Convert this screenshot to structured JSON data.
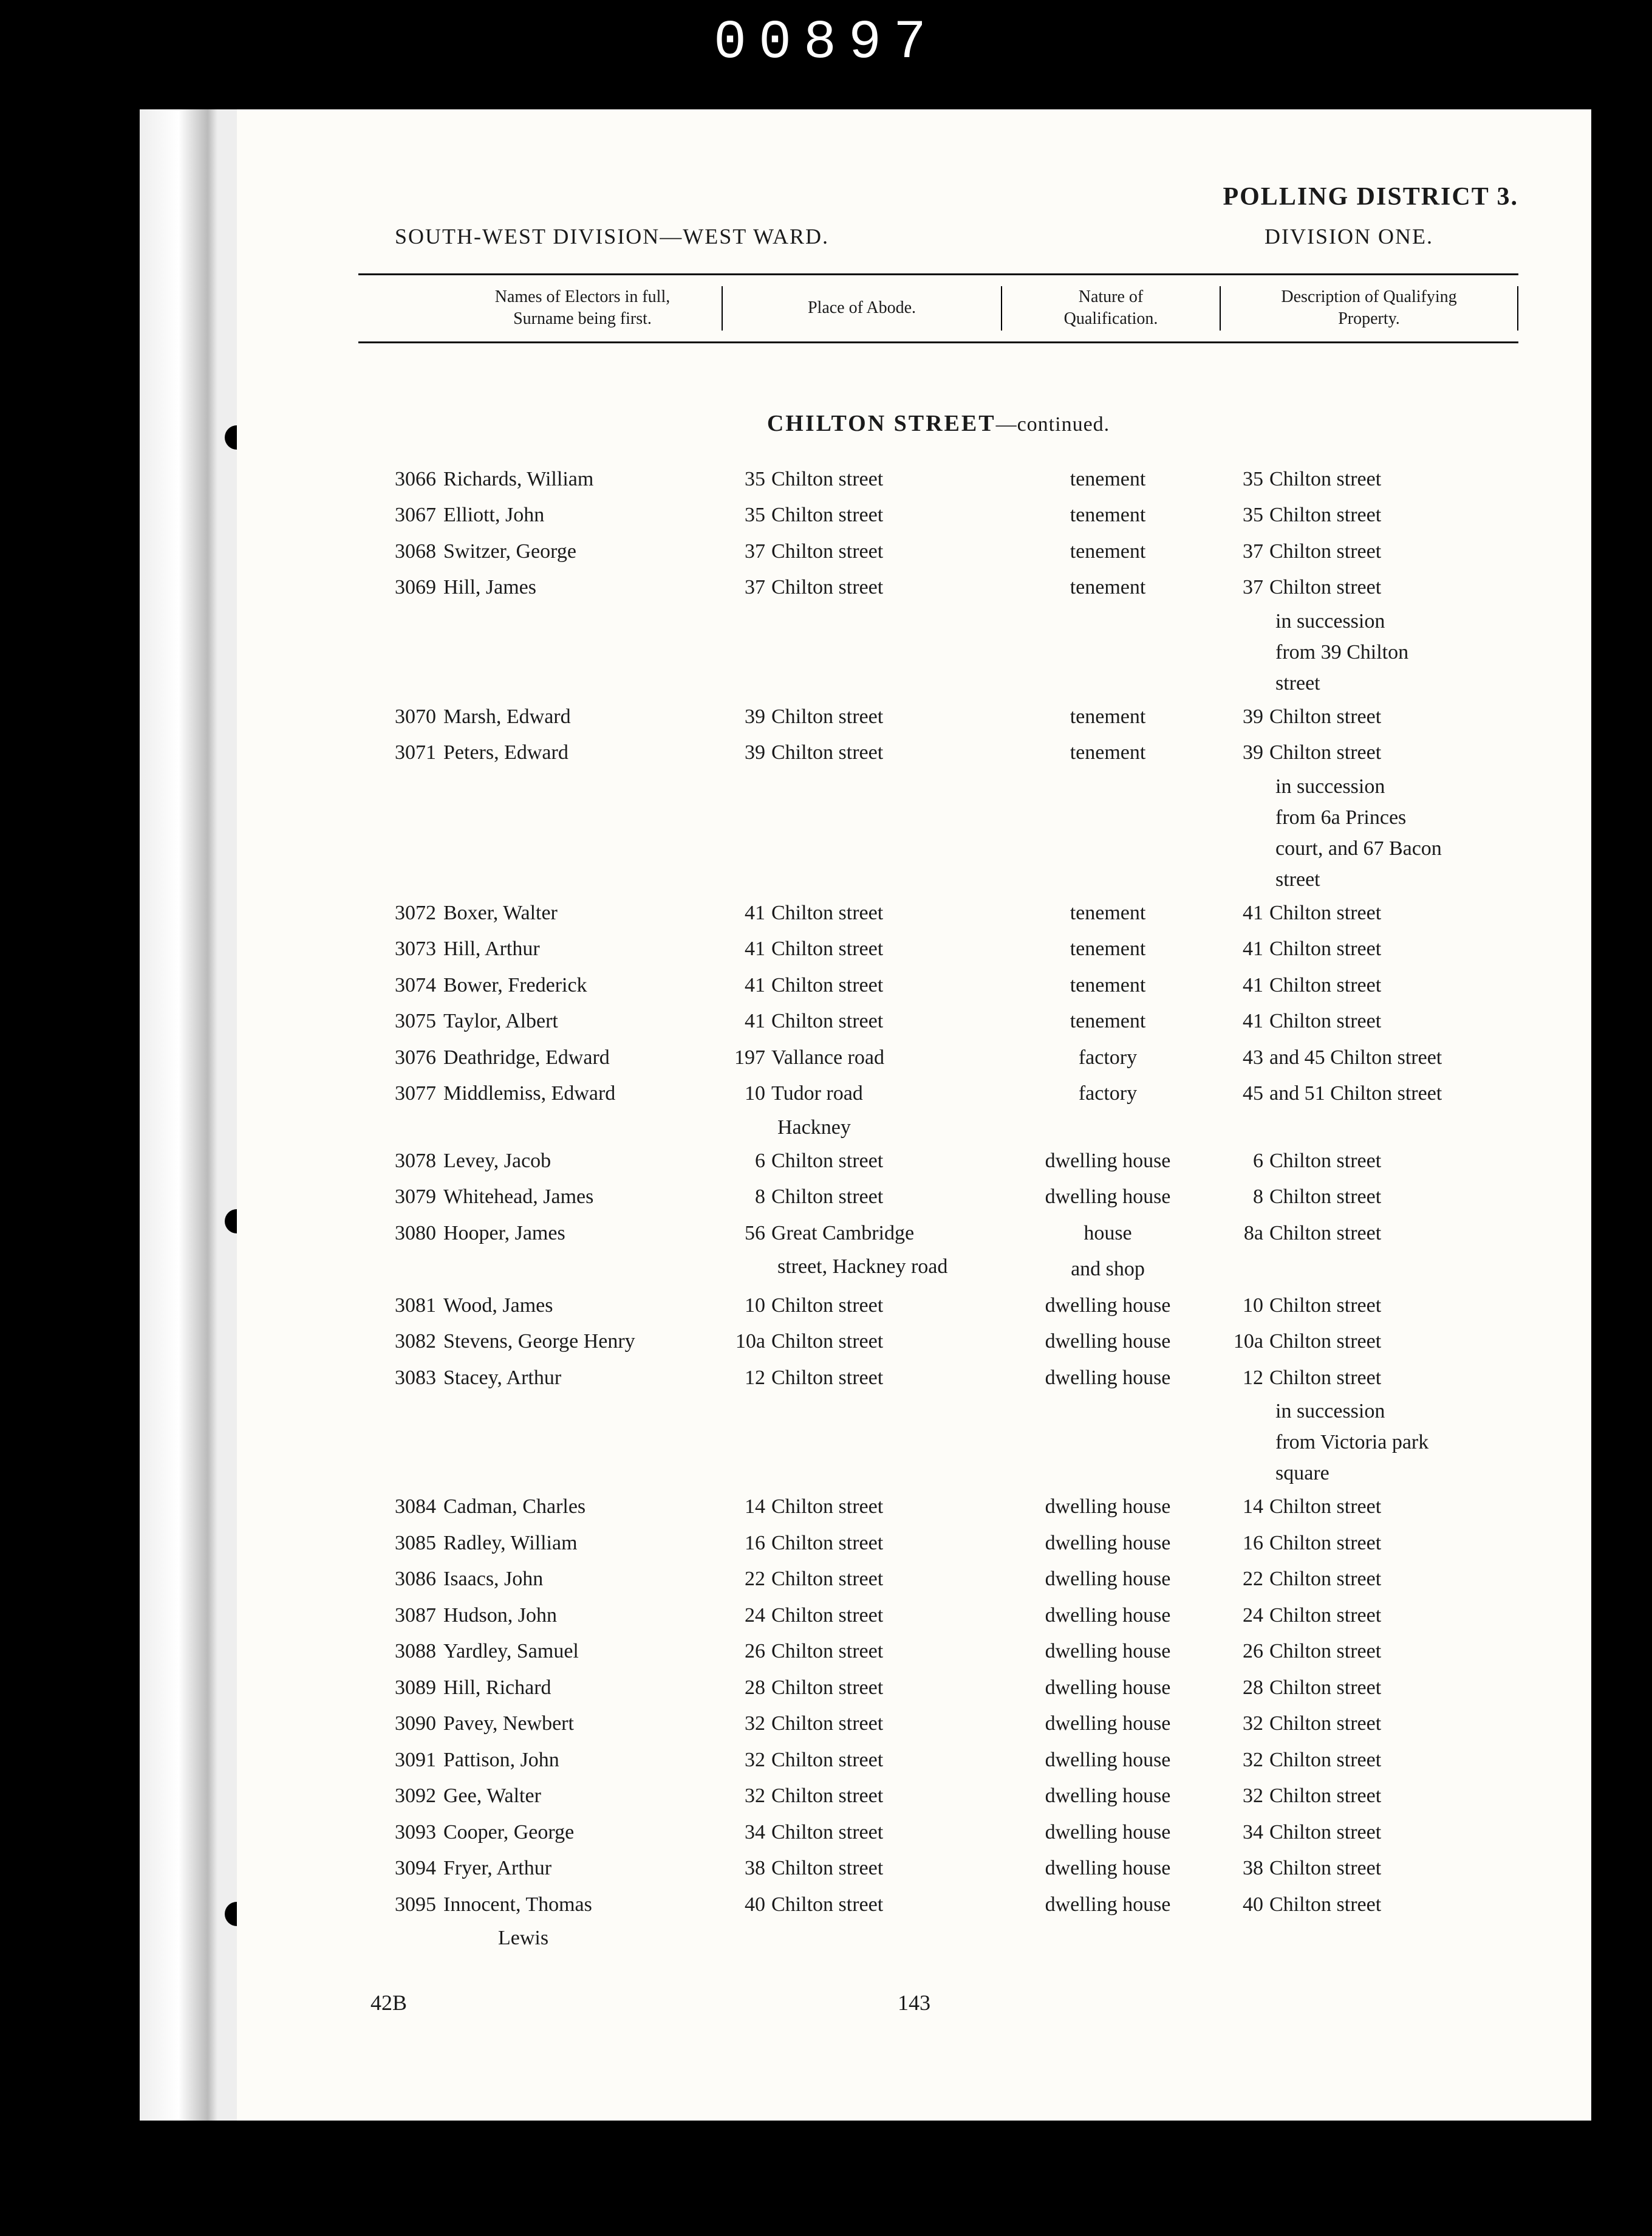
{
  "frame_number": "00897",
  "header": {
    "polling_district": "POLLING DISTRICT 3.",
    "division_ward": "SOUTH-WEST DIVISION—WEST WARD.",
    "division_num": "DIVISION ONE."
  },
  "columns": {
    "c1": "",
    "c2_l1": "Names of Electors in full,",
    "c2_l2": "Surname being first.",
    "c3": "Place of Abode.",
    "c4_l1": "Nature of",
    "c4_l2": "Qualification.",
    "c5_l1": "Description of Qualifying",
    "c5_l2": "Property."
  },
  "section": {
    "title": "CHILTON STREET",
    "cont": "—continued."
  },
  "rows": [
    {
      "n": "3066",
      "name": "Richards, William",
      "abode_n": "35",
      "abode": "Chilton street",
      "qual": "tenement",
      "prop_n": "35",
      "prop": "Chilton street"
    },
    {
      "n": "3067",
      "name": "Elliott, John",
      "abode_n": "35",
      "abode": "Chilton street",
      "qual": "tenement",
      "prop_n": "35",
      "prop": "Chilton street"
    },
    {
      "n": "3068",
      "name": "Switzer, George",
      "abode_n": "37",
      "abode": "Chilton street",
      "qual": "tenement",
      "prop_n": "37",
      "prop": "Chilton street"
    },
    {
      "n": "3069",
      "name": "Hill, James",
      "abode_n": "37",
      "abode": "Chilton street",
      "qual": "tenement",
      "prop_n": "37",
      "prop": "Chilton street",
      "prop_cont": [
        "in succession",
        "from 39 Chilton",
        "street"
      ]
    },
    {
      "n": "3070",
      "name": "Marsh, Edward",
      "abode_n": "39",
      "abode": "Chilton street",
      "qual": "tenement",
      "prop_n": "39",
      "prop": "Chilton street"
    },
    {
      "n": "3071",
      "name": "Peters, Edward",
      "abode_n": "39",
      "abode": "Chilton street",
      "qual": "tenement",
      "prop_n": "39",
      "prop": "Chilton street",
      "prop_cont": [
        "in succession",
        "from 6a Princes",
        "court, and 67 Bacon",
        "street"
      ]
    },
    {
      "n": "3072",
      "name": "Boxer, Walter",
      "abode_n": "41",
      "abode": "Chilton street",
      "qual": "tenement",
      "prop_n": "41",
      "prop": "Chilton street"
    },
    {
      "n": "3073",
      "name": "Hill, Arthur",
      "abode_n": "41",
      "abode": "Chilton street",
      "qual": "tenement",
      "prop_n": "41",
      "prop": "Chilton street"
    },
    {
      "n": "3074",
      "name": "Bower, Frederick",
      "abode_n": "41",
      "abode": "Chilton street",
      "qual": "tenement",
      "prop_n": "41",
      "prop": "Chilton street"
    },
    {
      "n": "3075",
      "name": "Taylor, Albert",
      "abode_n": "41",
      "abode": "Chilton street",
      "qual": "tenement",
      "prop_n": "41",
      "prop": "Chilton street"
    },
    {
      "n": "3076",
      "name": "Deathridge, Edward",
      "abode_n": "197",
      "abode": "Vallance road",
      "qual": "factory",
      "prop_n": "43",
      "prop": "and 45 Chilton street"
    },
    {
      "n": "3077",
      "name": "Middlemiss, Edward",
      "abode_n": "10",
      "abode": "Tudor road",
      "abode_cont": [
        "Hackney"
      ],
      "qual": "factory",
      "prop_n": "45",
      "prop": "and 51 Chilton street"
    },
    {
      "n": "3078",
      "name": "Levey, Jacob",
      "abode_n": "6",
      "abode": "Chilton street",
      "qual": "dwelling house",
      "prop_n": "6",
      "prop": "Chilton street"
    },
    {
      "n": "3079",
      "name": "Whitehead, James",
      "abode_n": "8",
      "abode": "Chilton street",
      "qual": "dwelling house",
      "prop_n": "8",
      "prop": "Chilton street"
    },
    {
      "n": "3080",
      "name": "Hooper, James",
      "abode_n": "56",
      "abode": "Great Cambridge",
      "abode_cont": [
        "street, Hackney road"
      ],
      "qual": "house",
      "qual_cont": [
        "and shop"
      ],
      "prop_n": "8a",
      "prop": "Chilton street"
    },
    {
      "n": "3081",
      "name": "Wood, James",
      "abode_n": "10",
      "abode": "Chilton street",
      "qual": "dwelling house",
      "prop_n": "10",
      "prop": "Chilton street"
    },
    {
      "n": "3082",
      "name": "Stevens, George Henry",
      "abode_n": "10a",
      "abode": "Chilton street",
      "qual": "dwelling house",
      "prop_n": "10a",
      "prop": "Chilton street"
    },
    {
      "n": "3083",
      "name": "Stacey, Arthur",
      "abode_n": "12",
      "abode": "Chilton street",
      "qual": "dwelling house",
      "prop_n": "12",
      "prop": "Chilton street",
      "prop_cont": [
        "in succession",
        "from Victoria park",
        "square"
      ]
    },
    {
      "n": "3084",
      "name": "Cadman, Charles",
      "abode_n": "14",
      "abode": "Chilton street",
      "qual": "dwelling house",
      "prop_n": "14",
      "prop": "Chilton street"
    },
    {
      "n": "3085",
      "name": "Radley, William",
      "abode_n": "16",
      "abode": "Chilton street",
      "qual": "dwelling house",
      "prop_n": "16",
      "prop": "Chilton street"
    },
    {
      "n": "3086",
      "name": "Isaacs, John",
      "abode_n": "22",
      "abode": "Chilton street",
      "qual": "dwelling house",
      "prop_n": "22",
      "prop": "Chilton street"
    },
    {
      "n": "3087",
      "name": "Hudson, John",
      "abode_n": "24",
      "abode": "Chilton street",
      "qual": "dwelling house",
      "prop_n": "24",
      "prop": "Chilton street"
    },
    {
      "n": "3088",
      "name": "Yardley, Samuel",
      "abode_n": "26",
      "abode": "Chilton street",
      "qual": "dwelling house",
      "prop_n": "26",
      "prop": "Chilton street"
    },
    {
      "n": "3089",
      "name": "Hill, Richard",
      "abode_n": "28",
      "abode": "Chilton street",
      "qual": "dwelling house",
      "prop_n": "28",
      "prop": "Chilton street"
    },
    {
      "n": "3090",
      "name": "Pavey, Newbert",
      "abode_n": "32",
      "abode": "Chilton street",
      "qual": "dwelling house",
      "prop_n": "32",
      "prop": "Chilton street"
    },
    {
      "n": "3091",
      "name": "Pattison, John",
      "abode_n": "32",
      "abode": "Chilton street",
      "qual": "dwelling house",
      "prop_n": "32",
      "prop": "Chilton street"
    },
    {
      "n": "3092",
      "name": "Gee, Walter",
      "abode_n": "32",
      "abode": "Chilton street",
      "qual": "dwelling house",
      "prop_n": "32",
      "prop": "Chilton street"
    },
    {
      "n": "3093",
      "name": "Cooper, George",
      "abode_n": "34",
      "abode": "Chilton street",
      "qual": "dwelling house",
      "prop_n": "34",
      "prop": "Chilton street"
    },
    {
      "n": "3094",
      "name": "Fryer, Arthur",
      "abode_n": "38",
      "abode": "Chilton street",
      "qual": "dwelling house",
      "prop_n": "38",
      "prop": "Chilton street"
    },
    {
      "n": "3095",
      "name": "Innocent, Thomas",
      "name_cont": [
        "Lewis"
      ],
      "abode_n": "40",
      "abode": "Chilton street",
      "qual": "dwelling house",
      "prop_n": "40",
      "prop": "Chilton street"
    }
  ],
  "footer": {
    "sig": "42B",
    "page": "143"
  }
}
